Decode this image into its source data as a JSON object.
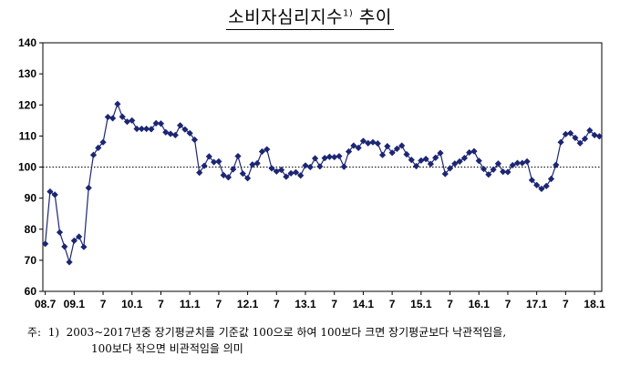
{
  "title": {
    "text": "소비자심리지수",
    "sup": "1)",
    "suffix": " 추이"
  },
  "chart_data": {
    "type": "line",
    "title": "소비자심리지수1) 추이",
    "xlabel": "",
    "ylabel": "",
    "ylim": [
      60,
      140
    ],
    "yticks": [
      60,
      70,
      80,
      90,
      100,
      110,
      120,
      130,
      140
    ],
    "xticks": [
      {
        "index": 0,
        "label": "08.7"
      },
      {
        "index": 6,
        "label": "09.1"
      },
      {
        "index": 12,
        "label": "7"
      },
      {
        "index": 18,
        "label": "10.1"
      },
      {
        "index": 24,
        "label": "7"
      },
      {
        "index": 30,
        "label": "11.1"
      },
      {
        "index": 36,
        "label": "7"
      },
      {
        "index": 42,
        "label": "12.1"
      },
      {
        "index": 48,
        "label": "7"
      },
      {
        "index": 54,
        "label": "13.1"
      },
      {
        "index": 60,
        "label": "7"
      },
      {
        "index": 66,
        "label": "14.1"
      },
      {
        "index": 72,
        "label": "7"
      },
      {
        "index": 78,
        "label": "15.1"
      },
      {
        "index": 84,
        "label": "7"
      },
      {
        "index": 90,
        "label": "16.1"
      },
      {
        "index": 96,
        "label": "7"
      },
      {
        "index": 102,
        "label": "17.1"
      },
      {
        "index": 108,
        "label": "7"
      },
      {
        "index": 114,
        "label": "18.1"
      }
    ],
    "reference_line": {
      "value": 100,
      "style": "dotted"
    },
    "grid": false,
    "series": [
      {
        "color": "#1c2673",
        "marker": "diamond",
        "values": [
          75.3,
          92.1,
          91.1,
          79.0,
          74.4,
          69.4,
          76.3,
          77.6,
          74.3,
          93.3,
          103.9,
          106.2,
          108.0,
          116.1,
          115.7,
          120.3,
          116.2,
          114.6,
          115.0,
          112.3,
          112.3,
          112.3,
          112.2,
          114.1,
          114.0,
          111.2,
          110.7,
          110.3,
          113.4,
          112.1,
          110.9,
          108.8,
          98.2,
          100.4,
          103.4,
          101.6,
          101.8,
          97.4,
          96.7,
          99.3,
          103.5,
          97.9,
          96.4,
          100.8,
          101.2,
          105.0,
          105.7,
          99.6,
          98.6,
          99.1,
          96.9,
          98.0,
          98.3,
          97.3,
          100.5,
          100.0,
          102.8,
          100.2,
          102.9,
          103.3,
          103.2,
          103.5,
          100.1,
          105.0,
          106.9,
          106.2,
          108.4,
          107.7,
          108.0,
          107.6,
          103.9,
          106.7,
          104.6,
          105.9,
          106.9,
          104.1,
          102.3,
          100.3,
          102.1,
          102.6,
          101.0,
          103.0,
          104.5,
          97.8,
          99.6,
          101.1,
          101.8,
          102.9,
          104.7,
          105.1,
          102.0,
          99.4,
          97.6,
          99.2,
          101.1,
          98.5,
          98.4,
          100.6,
          101.3,
          101.3,
          101.8,
          95.8,
          94.2,
          93.0,
          93.9,
          96.2,
          100.7,
          108.0,
          110.6,
          110.9,
          109.4,
          107.7,
          109.1,
          111.8,
          110.3,
          109.9
        ]
      }
    ]
  },
  "note": {
    "line1": "주:  1)  2003~2017년중 장기평균치를 기준값 100으로 하여 100보다 크면 장기평균보다 낙관적임을,",
    "line2": "100보다 작으면 비관적임을 의미"
  }
}
